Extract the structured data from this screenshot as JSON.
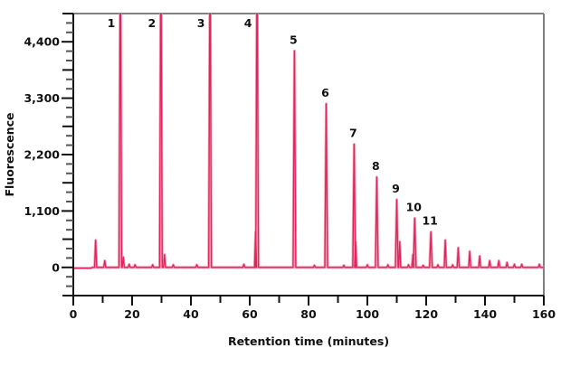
{
  "chart_data": {
    "type": "line",
    "title": "",
    "xlabel": "Retention time (minutes)",
    "ylabel": "Fluorescence",
    "xlim": [
      0,
      160
    ],
    "ylim": [
      -550,
      4950
    ],
    "x_ticks": [
      0,
      20,
      40,
      60,
      80,
      100,
      120,
      140,
      160
    ],
    "x_tick_labels": [
      "0",
      "20",
      "40",
      "60",
      "80",
      "100",
      "120",
      "140",
      "160"
    ],
    "y_ticks": [
      0,
      1100,
      2200,
      3300,
      4400
    ],
    "y_tick_labels": [
      "0",
      "1,100",
      "2,200",
      "3,300",
      "4,400"
    ],
    "grid": false,
    "line_color": "#e0245e",
    "labeled_peaks": [
      {
        "label": "1",
        "x": 16.0,
        "y": null
      },
      {
        "label": "2",
        "x": 29.8,
        "y": null
      },
      {
        "label": "3",
        "x": 46.5,
        "y": null
      },
      {
        "label": "4",
        "x": 62.5,
        "y": null
      },
      {
        "label": "5",
        "x": 75.2,
        "y": 4220
      },
      {
        "label": "6",
        "x": 86.0,
        "y": 3190
      },
      {
        "label": "7",
        "x": 95.5,
        "y": 2400
      },
      {
        "label": "8",
        "x": 103.2,
        "y": 1760
      },
      {
        "label": "9",
        "x": 110.0,
        "y": 1320
      },
      {
        "label": "10",
        "x": 116.1,
        "y": 960
      },
      {
        "label": "11",
        "x": 121.6,
        "y": 690
      }
    ],
    "other_peaks": [
      {
        "x": 7.6,
        "y": 530
      },
      {
        "x": 10.7,
        "y": 130
      },
      {
        "x": 17.0,
        "y": 200
      },
      {
        "x": 19.0,
        "y": 60
      },
      {
        "x": 21.0,
        "y": 50
      },
      {
        "x": 27.0,
        "y": 50
      },
      {
        "x": 31.0,
        "y": 250
      },
      {
        "x": 34.0,
        "y": 50
      },
      {
        "x": 42.0,
        "y": 50
      },
      {
        "x": 58.0,
        "y": 60
      },
      {
        "x": 62.0,
        "y": 700
      },
      {
        "x": 82.0,
        "y": 40
      },
      {
        "x": 92.0,
        "y": 40
      },
      {
        "x": 96.0,
        "y": 500
      },
      {
        "x": 100.0,
        "y": 50
      },
      {
        "x": 107.0,
        "y": 50
      },
      {
        "x": 111.0,
        "y": 500
      },
      {
        "x": 114.0,
        "y": 50
      },
      {
        "x": 115.5,
        "y": 250
      },
      {
        "x": 119.0,
        "y": 40
      },
      {
        "x": 124.0,
        "y": 50
      },
      {
        "x": 126.5,
        "y": 530
      },
      {
        "x": 129.0,
        "y": 50
      },
      {
        "x": 130.9,
        "y": 380
      },
      {
        "x": 134.8,
        "y": 310
      },
      {
        "x": 138.2,
        "y": 220
      },
      {
        "x": 141.6,
        "y": 130
      },
      {
        "x": 144.7,
        "y": 130
      },
      {
        "x": 147.5,
        "y": 95
      },
      {
        "x": 150.0,
        "y": 60
      },
      {
        "x": 152.5,
        "y": 60
      },
      {
        "x": 158.5,
        "y": 60
      }
    ]
  }
}
